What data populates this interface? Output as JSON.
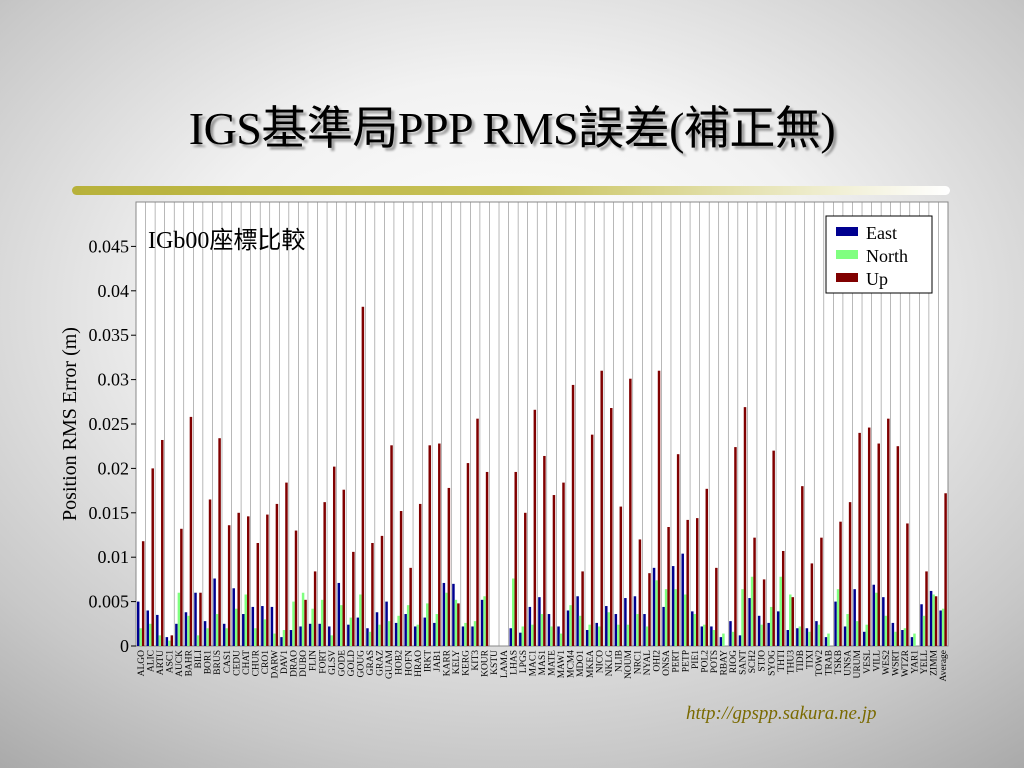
{
  "slide": {
    "title": "IGS基準局PPP RMS誤差(補正無)",
    "url": "http://gpspp.sakura.ne.jp"
  },
  "colors": {
    "east": "#000090",
    "north": "#80ff80",
    "up": "#800000",
    "grid": "#8a8a8a"
  },
  "chart_data": {
    "type": "bar",
    "title": "IGb00座標比較",
    "xlabel": "",
    "ylabel": "Position RMS Error (m)",
    "ylim": [
      0,
      0.05
    ],
    "yticks": [
      0,
      0.005,
      0.01,
      0.015,
      0.02,
      0.025,
      0.03,
      0.035,
      0.04,
      0.045
    ],
    "ytick_labels": [
      "0",
      "0.005",
      "0.01",
      "0.015",
      "0.02",
      "0.025",
      "0.03",
      "0.035",
      "0.04",
      "0.045"
    ],
    "grid": "vertical",
    "legend_position": "top-right",
    "categories": [
      "ALGO",
      "ALIC",
      "ARTU",
      "ASC1",
      "AUCK",
      "BAHR",
      "BILI",
      "BOR1",
      "BRUS",
      "CAS1",
      "CEDU",
      "CHAT",
      "CHUR",
      "CRO1",
      "DARW",
      "DAV1",
      "DRAO",
      "DUBO",
      "FLIN",
      "FORT",
      "GLSV",
      "GODE",
      "GOLD",
      "GOUG",
      "GRAS",
      "GRAZ",
      "GUAM",
      "HOB2",
      "HOFN",
      "HRAO",
      "IRKT",
      "JAB1",
      "KARR",
      "KELY",
      "KERG",
      "KIT3",
      "KOUR",
      "KSTU",
      "LAMA",
      "LHAS",
      "LPGS",
      "MAC1",
      "MAS1",
      "MATE",
      "MAW1",
      "MCM4",
      "MDO1",
      "MKEA",
      "NICO",
      "NKLG",
      "NLIB",
      "NOUM",
      "NRC1",
      "NYAL",
      "OHI2",
      "ONSA",
      "PERT",
      "PETP",
      "PIE1",
      "POL2",
      "POTS",
      "RBAY",
      "RIOG",
      "SANT",
      "SCH2",
      "STJO",
      "SYOG",
      "THTI",
      "THU3",
      "TIDB",
      "TIXI",
      "TOW2",
      "TRAB",
      "TSKB",
      "UNSA",
      "URUM",
      "VESL",
      "VILL",
      "WES2",
      "WSRT",
      "WTZR",
      "YAR1",
      "YELL",
      "ZIMM",
      "Average"
    ],
    "series": [
      {
        "name": "East",
        "values": [
          0.005,
          0.004,
          0.0035,
          0.001,
          0.0025,
          0.0038,
          0.006,
          0.0028,
          0.0076,
          0.0025,
          0.0065,
          0.0036,
          0.0044,
          0.0045,
          0.0044,
          0.001,
          0.0018,
          0.0022,
          0.0025,
          0.0025,
          0.0022,
          0.0071,
          0.0024,
          0.0032,
          0.002,
          0.0038,
          0.005,
          0.0026,
          0.0036,
          0.0022,
          0.0032,
          0.0026,
          0.0071,
          0.007,
          0.0022,
          0.0022,
          0.0052,
          0,
          0,
          0.002,
          0.0015,
          0.0044,
          0.0055,
          0.0036,
          0.0022,
          0.004,
          0.0056,
          0.0018,
          0.0026,
          0.0045,
          0.0036,
          0.0054,
          0.0056,
          0.0036,
          0.0088,
          0.0044,
          0.009,
          0.0104,
          0.0039,
          0.0022,
          0.0022,
          0.001,
          0.0028,
          0.0012,
          0.0054,
          0.0034,
          0.0026,
          0.0039,
          0.0018,
          0.002,
          0.002,
          0.0028,
          0.001,
          0.005,
          0.0022,
          0.0064,
          0.0016,
          0.0069,
          0.0055,
          0.0026,
          0.0018,
          0.001,
          0.0047,
          0.0062,
          0.004
        ]
      },
      {
        "name": "North",
        "values": [
          0.002,
          0.0025,
          0.0012,
          0.0006,
          0.006,
          0.0034,
          0.0012,
          0.002,
          0.0036,
          0.002,
          0.0042,
          0.0058,
          0.002,
          0.003,
          0.0014,
          0.0018,
          0.005,
          0.006,
          0.0042,
          0.0052,
          0.0012,
          0.0046,
          0.0032,
          0.0058,
          0.0016,
          0.0024,
          0.0028,
          0.0034,
          0.0046,
          0.0024,
          0.0048,
          0.0036,
          0.006,
          0.0052,
          0.0026,
          0.0028,
          0.0056,
          0,
          0,
          0.0076,
          0.0022,
          0.0024,
          0.0036,
          0.0022,
          0.0014,
          0.0046,
          0.0034,
          0.0024,
          0.0022,
          0.0038,
          0.0024,
          0.0024,
          0.0036,
          0.0022,
          0.0074,
          0.0064,
          0.0064,
          0.0058,
          0.0036,
          0.0024,
          0.0018,
          0.0014,
          0.0016,
          0.0064,
          0.0078,
          0.0024,
          0.0044,
          0.0078,
          0.0058,
          0.0022,
          0.0016,
          0.0024,
          0.0014,
          0.0064,
          0.0036,
          0.0028,
          0.0024,
          0.006,
          0.0034,
          0.0016,
          0.002,
          0.0014,
          0.0034,
          0.0058,
          0.0042
        ]
      },
      {
        "name": "Up",
        "values": [
          0.0118,
          0.02,
          0.0232,
          0.0012,
          0.0132,
          0.0258,
          0.006,
          0.0165,
          0.0234,
          0.0136,
          0.015,
          0.0146,
          0.0116,
          0.0148,
          0.016,
          0.0184,
          0.013,
          0.0052,
          0.0084,
          0.0162,
          0.0202,
          0.0176,
          0.0106,
          0.0382,
          0.0116,
          0.0124,
          0.0226,
          0.0152,
          0.0088,
          0.016,
          0.0226,
          0.0228,
          0.0178,
          0.0048,
          0.0206,
          0.0256,
          0.0196,
          0,
          0,
          0.0196,
          0.015,
          0.0266,
          0.0214,
          0.017,
          0.0184,
          0.0294,
          0.0084,
          0.0238,
          0.031,
          0.0268,
          0.0157,
          0.0301,
          0.012,
          0.0082,
          0.031,
          0.0134,
          0.0216,
          0.0142,
          0.0144,
          0.0177,
          0.0088,
          0,
          0.0224,
          0.0269,
          0.0122,
          0.0075,
          0.022,
          0.0107,
          0.0055,
          0.018,
          0.0093,
          0.0122,
          0,
          0.014,
          0.0162,
          0.024,
          0.0246,
          0.0228,
          0.0256,
          0.0225,
          0.0138,
          0,
          0.0084,
          0.0056,
          0.0172
        ]
      }
    ]
  }
}
